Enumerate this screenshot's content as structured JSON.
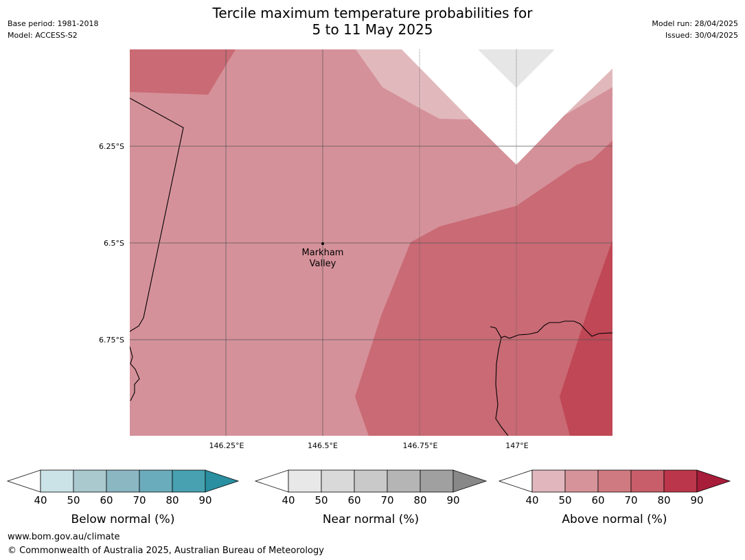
{
  "title_line1": "Tercile maximum temperature probabilities for",
  "title_line2": "5 to 11 May 2025",
  "base_period": "Base period: 1981-2018",
  "model": "Model: ACCESS-S2",
  "model_run": "Model run: 28/04/2025",
  "issued": "Issued: 30/04/2025",
  "map": {
    "lat_labels": [
      "6.25°S",
      "6.5°S",
      "6.75°S"
    ],
    "lon_labels": [
      "146.25°E",
      "146.5°E",
      "146.75°E",
      "147°E"
    ],
    "place": {
      "line1": "Markham",
      "line2": "Valley"
    }
  },
  "colorbars": [
    {
      "label": "Below normal (%)",
      "ticks": [
        "40",
        "50",
        "60",
        "70",
        "80",
        "90"
      ],
      "colors": [
        "#cbe2e7",
        "#a9c9ce",
        "#8bb7c3",
        "#6aacbb",
        "#47a1b0",
        "#2a8fa0"
      ]
    },
    {
      "label": "Near normal (%)",
      "ticks": [
        "40",
        "50",
        "60",
        "70",
        "80",
        "90"
      ],
      "colors": [
        "#e8e8e8",
        "#d9d9d9",
        "#c9c9c9",
        "#b5b5b5",
        "#a0a0a0",
        "#888888"
      ]
    },
    {
      "label": "Above normal (%)",
      "ticks": [
        "40",
        "50",
        "60",
        "70",
        "80",
        "90"
      ],
      "colors": [
        "#e1b7bd",
        "#d6939a",
        "#cf7a80",
        "#c75e6a",
        "#bb364a",
        "#a81d3a"
      ]
    }
  ],
  "footer_url": "www.bom.gov.au/climate",
  "footer_copyright": "© Commonwealth of Australia 2025, Australian Bureau of Meteorology"
}
